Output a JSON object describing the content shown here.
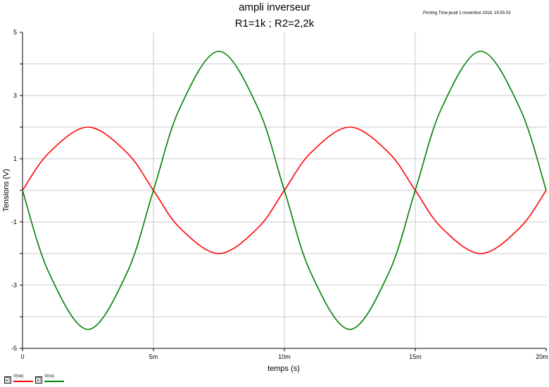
{
  "header": {
    "title": "ampli inverseur",
    "subtitle": "R1=1k ; R2=2,2k",
    "printing_time": "Printing Time:jeudi 1 novembre 2018, 19:55:03"
  },
  "chart_data": {
    "type": "line",
    "xlabel": "temps (s)",
    "ylabel": "Tensions (V)",
    "xlim": [
      0,
      0.02
    ],
    "ylim": [
      -5,
      5
    ],
    "x_ticks": [
      {
        "value": 0,
        "label": "0"
      },
      {
        "value": 0.005,
        "label": "5m"
      },
      {
        "value": 0.01,
        "label": "10m"
      },
      {
        "value": 0.015,
        "label": "15m"
      },
      {
        "value": 0.02,
        "label": "20m"
      }
    ],
    "y_ticks": [
      {
        "value": 5,
        "label": "5"
      },
      {
        "value": 3,
        "label": "3"
      },
      {
        "value": 1,
        "label": "1"
      },
      {
        "value": -1,
        "label": "-1"
      },
      {
        "value": -3,
        "label": "-3"
      },
      {
        "value": -5,
        "label": "-5"
      }
    ],
    "y_minor_ticks": [
      4,
      2,
      0,
      -2,
      -4
    ],
    "grid": true,
    "legend_position": "bottom-left",
    "series": [
      {
        "name": "V(ve)",
        "color": "#ff0000",
        "x": [
          0,
          0.001,
          0.0025,
          0.004,
          0.005,
          0.006,
          0.0075,
          0.009,
          0.01,
          0.011,
          0.0125,
          0.014,
          0.015,
          0.016,
          0.0175,
          0.019,
          0.02
        ],
        "y": [
          0,
          1.18,
          2.0,
          1.18,
          0,
          -1.18,
          -2.0,
          -1.18,
          0,
          1.18,
          2.0,
          1.18,
          0,
          -1.18,
          -2.0,
          -1.18,
          0
        ]
      },
      {
        "name": "V(vs)",
        "color": "#008000",
        "x": [
          0,
          0.001,
          0.0025,
          0.004,
          0.005,
          0.006,
          0.0075,
          0.009,
          0.01,
          0.011,
          0.0125,
          0.014,
          0.015,
          0.016,
          0.0175,
          0.019,
          0.02
        ],
        "y": [
          0,
          -2.59,
          -4.4,
          -2.59,
          0,
          2.59,
          4.4,
          2.59,
          0,
          -2.59,
          -4.4,
          -2.59,
          0,
          2.59,
          4.4,
          2.59,
          0
        ]
      }
    ]
  },
  "legend": {
    "items": [
      {
        "label": "V(ve)",
        "color": "#ff0000",
        "checked_glyph": "☑"
      },
      {
        "label": "V(vs)",
        "color": "#008000",
        "checked_glyph": "☑"
      }
    ]
  }
}
